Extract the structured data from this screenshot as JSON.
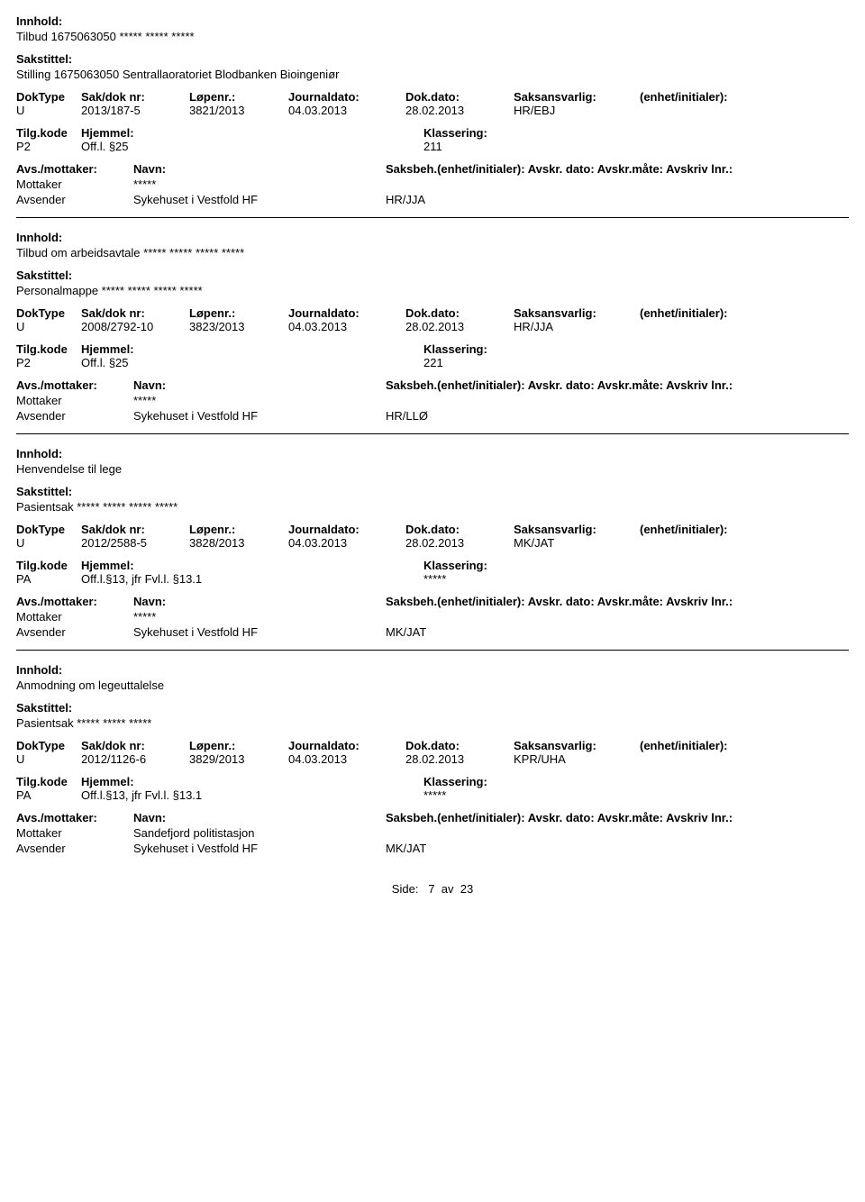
{
  "labels": {
    "innhold": "Innhold:",
    "sakstittel": "Sakstittel:",
    "doktype": "DokType",
    "sakdoknr": "Sak/dok nr:",
    "lopenr": "Løpenr.:",
    "journaldato": "Journaldato:",
    "dokdato": "Dok.dato:",
    "saksansvarlig": "Saksansvarlig:",
    "enhet": "(enhet/initialer):",
    "tilgkode": "Tilg.kode",
    "hjemmel": "Hjemmel:",
    "klassering": "Klassering:",
    "avsmottaker": "Avs./mottaker:",
    "navn": "Navn:",
    "saksbeh_line": "Saksbeh.(enhet/initialer): Avskr. dato:  Avskr.måte:  Avskriv lnr.:",
    "mottaker": "Mottaker",
    "avsender": "Avsender"
  },
  "records": [
    {
      "innhold": "Tilbud 1675063050 ***** ***** *****",
      "sakstittel": "Stilling 1675063050 Sentrallaoratoriet Blodbanken Bioingeniør",
      "doktype": "U",
      "sakdoknr": "2013/187-5",
      "lopenr": "3821/2013",
      "journaldato": "04.03.2013",
      "dokdato": "28.02.2013",
      "saksansvarlig": "HR/EBJ",
      "enhet": "",
      "tilgkode": "P2",
      "hjemmel": "Off.l. §25",
      "klassering": "211",
      "parties": [
        {
          "role": "Mottaker",
          "name": "*****",
          "unit": ""
        },
        {
          "role": "Avsender",
          "name": "Sykehuset i Vestfold HF",
          "unit": "HR/JJA"
        }
      ]
    },
    {
      "innhold": "Tilbud om arbeidsavtale ***** ***** ***** *****",
      "sakstittel": "Personalmappe ***** ***** ***** *****",
      "doktype": "U",
      "sakdoknr": "2008/2792-10",
      "lopenr": "3823/2013",
      "journaldato": "04.03.2013",
      "dokdato": "28.02.2013",
      "saksansvarlig": "HR/JJA",
      "enhet": "",
      "tilgkode": "P2",
      "hjemmel": "Off.l. §25",
      "klassering": "221",
      "parties": [
        {
          "role": "Mottaker",
          "name": "*****",
          "unit": ""
        },
        {
          "role": "Avsender",
          "name": "Sykehuset i Vestfold HF",
          "unit": "HR/LLØ"
        }
      ]
    },
    {
      "innhold": "Henvendelse til lege",
      "sakstittel": "Pasientsak ***** ***** ***** *****",
      "doktype": "U",
      "sakdoknr": "2012/2588-5",
      "lopenr": "3828/2013",
      "journaldato": "04.03.2013",
      "dokdato": "28.02.2013",
      "saksansvarlig": "MK/JAT",
      "enhet": "",
      "tilgkode": "PA",
      "hjemmel": "Off.l.§13, jfr Fvl.l. §13.1",
      "klassering": "*****",
      "parties": [
        {
          "role": "Mottaker",
          "name": "*****",
          "unit": ""
        },
        {
          "role": "Avsender",
          "name": "Sykehuset i Vestfold HF",
          "unit": "MK/JAT"
        }
      ]
    },
    {
      "innhold": "Anmodning om legeuttalelse",
      "sakstittel": "Pasientsak ***** ***** *****",
      "doktype": "U",
      "sakdoknr": "2012/1126-6",
      "lopenr": "3829/2013",
      "journaldato": "04.03.2013",
      "dokdato": "28.02.2013",
      "saksansvarlig": "KPR/UHA",
      "enhet": "",
      "tilgkode": "PA",
      "hjemmel": "Off.l.§13, jfr Fvl.l. §13.1",
      "klassering": "*****",
      "parties": [
        {
          "role": "Mottaker",
          "name": "Sandefjord politistasjon",
          "unit": ""
        },
        {
          "role": "Avsender",
          "name": "Sykehuset i Vestfold HF",
          "unit": "MK/JAT"
        }
      ]
    }
  ],
  "footer": {
    "prefix": "Side:",
    "page": "7",
    "of": "av",
    "total": "23"
  }
}
